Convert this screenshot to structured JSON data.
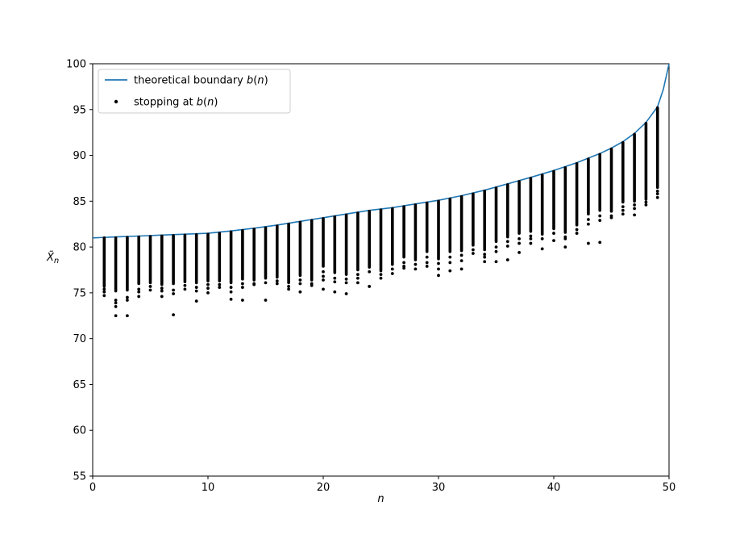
{
  "figure": {
    "background": "#ffffff",
    "kind": "matplotlib-style scatter plot with boundary curve"
  },
  "legend": {
    "border_color": "#cccccc",
    "background": "#ffffff",
    "items": [
      {
        "type": "line",
        "color": "#1f77b4",
        "label": "theoretical boundary b(n)",
        "label_parts": [
          {
            "text": "theoretical boundary ",
            "italic": false
          },
          {
            "text": "b",
            "italic": true
          },
          {
            "text": "(",
            "italic": false
          },
          {
            "text": "n",
            "italic": true
          },
          {
            "text": ")",
            "italic": false
          }
        ]
      },
      {
        "type": "dot",
        "color": "#000000",
        "label": "stopping at b(n)",
        "label_parts": [
          {
            "text": "stopping at ",
            "italic": false
          },
          {
            "text": "b",
            "italic": true
          },
          {
            "text": "(",
            "italic": false
          },
          {
            "text": "n",
            "italic": true
          },
          {
            "text": ")",
            "italic": false
          }
        ]
      }
    ]
  },
  "axes": {
    "x_range": [
      0,
      50
    ],
    "y_range": [
      55,
      100
    ],
    "x_ticks": [
      0,
      10,
      20,
      30,
      40,
      50
    ],
    "y_ticks": [
      55,
      60,
      65,
      70,
      75,
      80,
      85,
      90,
      95,
      100
    ],
    "xlabel": "n",
    "ylabel": "X̃n",
    "xlabel_parts": [
      {
        "text": "n",
        "italic": true
      }
    ],
    "ylabel_parts": [
      {
        "text": "X̃",
        "italic": true
      },
      {
        "text": "n",
        "italic": true,
        "sub": true
      }
    ]
  },
  "chart_data": {
    "type": "scatter",
    "title": "",
    "xlabel": "n",
    "ylabel": "X̃n",
    "xlim": [
      0,
      50
    ],
    "ylim": [
      55,
      100
    ],
    "grid": false,
    "legend_position": "upper left",
    "series": [
      {
        "name": "theoretical boundary b(n)",
        "kind": "line",
        "color": "#1f77b4",
        "x": [
          0,
          2,
          4,
          6,
          8,
          10,
          12,
          14,
          16,
          18,
          20,
          22,
          24,
          26,
          28,
          30,
          32,
          34,
          36,
          38,
          40,
          42,
          44,
          45,
          46,
          47,
          48,
          49,
          49.5,
          50
        ],
        "y": [
          81.0,
          81.1,
          81.2,
          81.3,
          81.4,
          81.5,
          81.75,
          82.05,
          82.4,
          82.8,
          83.2,
          83.6,
          84.0,
          84.3,
          84.7,
          85.1,
          85.6,
          86.2,
          86.9,
          87.6,
          88.35,
          89.2,
          90.2,
          90.8,
          91.5,
          92.4,
          93.6,
          95.3,
          97.2,
          100.0
        ]
      },
      {
        "name": "stopping at b(n)",
        "kind": "scatter-strips",
        "color": "#000000",
        "note": "dense vertical clusters of stopped sample means at each n; top touches b(n), plus sparse low outliers",
        "strips": [
          {
            "n": 1,
            "top": 81.0,
            "bottom": 75.7,
            "outliers": [
              75.4,
              75.1,
              74.7
            ]
          },
          {
            "n": 2,
            "top": 81.0,
            "bottom": 75.2,
            "outliers": [
              74.2,
              73.9,
              73.5,
              72.5
            ]
          },
          {
            "n": 3,
            "top": 81.05,
            "bottom": 75.3,
            "outliers": [
              74.5,
              74.2,
              72.5
            ]
          },
          {
            "n": 4,
            "top": 81.1,
            "bottom": 76.0,
            "outliers": [
              75.4,
              75.1,
              74.6
            ]
          },
          {
            "n": 5,
            "top": 81.15,
            "bottom": 76.1,
            "outliers": [
              75.7,
              75.3
            ]
          },
          {
            "n": 6,
            "top": 81.2,
            "bottom": 75.9,
            "outliers": [
              75.5,
              75.2,
              74.6
            ]
          },
          {
            "n": 7,
            "top": 81.25,
            "bottom": 76.0,
            "outliers": [
              75.3,
              74.9,
              72.6
            ]
          },
          {
            "n": 8,
            "top": 81.3,
            "bottom": 76.2,
            "outliers": [
              75.8,
              75.4
            ]
          },
          {
            "n": 9,
            "top": 81.35,
            "bottom": 76.1,
            "outliers": [
              75.6,
              75.2,
              74.1
            ]
          },
          {
            "n": 10,
            "top": 81.4,
            "bottom": 76.3,
            "outliers": [
              75.9,
              75.5,
              75.0
            ]
          },
          {
            "n": 11,
            "top": 81.5,
            "bottom": 76.3,
            "outliers": [
              75.9,
              75.6
            ]
          },
          {
            "n": 12,
            "top": 81.65,
            "bottom": 76.1,
            "outliers": [
              75.6,
              75.1,
              74.3
            ]
          },
          {
            "n": 13,
            "top": 81.8,
            "bottom": 76.5,
            "outliers": [
              76.0,
              75.6,
              74.2
            ]
          },
          {
            "n": 14,
            "top": 81.95,
            "bottom": 76.4,
            "outliers": [
              76.0,
              75.9
            ]
          },
          {
            "n": 15,
            "top": 82.1,
            "bottom": 76.6,
            "outliers": [
              76.1,
              74.2
            ]
          },
          {
            "n": 16,
            "top": 82.3,
            "bottom": 76.7,
            "outliers": [
              76.3,
              76.0
            ]
          },
          {
            "n": 17,
            "top": 82.5,
            "bottom": 76.1,
            "outliers": [
              75.7,
              75.4
            ]
          },
          {
            "n": 18,
            "top": 82.7,
            "bottom": 76.9,
            "outliers": [
              76.4,
              76.0,
              75.1
            ]
          },
          {
            "n": 19,
            "top": 82.9,
            "bottom": 76.4,
            "outliers": [
              76.0,
              75.8
            ]
          },
          {
            "n": 20,
            "top": 83.1,
            "bottom": 77.9,
            "outliers": [
              77.3,
              76.8,
              76.4,
              75.4
            ]
          },
          {
            "n": 21,
            "top": 83.3,
            "bottom": 77.2,
            "outliers": [
              76.6,
              76.2,
              75.1
            ]
          },
          {
            "n": 22,
            "top": 83.5,
            "bottom": 77.0,
            "outliers": [
              76.5,
              76.1,
              74.9
            ]
          },
          {
            "n": 23,
            "top": 83.7,
            "bottom": 77.5,
            "outliers": [
              77.0,
              76.6,
              76.1
            ]
          },
          {
            "n": 24,
            "top": 83.9,
            "bottom": 77.8,
            "outliers": [
              77.3,
              75.7
            ]
          },
          {
            "n": 25,
            "top": 84.05,
            "bottom": 77.4,
            "outliers": [
              77.0,
              76.6
            ]
          },
          {
            "n": 26,
            "top": 84.2,
            "bottom": 78.1,
            "outliers": [
              77.6,
              77.1
            ]
          },
          {
            "n": 27,
            "top": 84.4,
            "bottom": 78.9,
            "outliers": [
              78.3,
              77.9,
              77.7
            ]
          },
          {
            "n": 28,
            "top": 84.6,
            "bottom": 78.6,
            "outliers": [
              78.1,
              77.6
            ]
          },
          {
            "n": 29,
            "top": 84.8,
            "bottom": 79.5,
            "outliers": [
              78.9,
              78.3,
              77.9
            ]
          },
          {
            "n": 30,
            "top": 85.0,
            "bottom": 78.7,
            "outliers": [
              78.2,
              77.6,
              76.9
            ]
          },
          {
            "n": 31,
            "top": 85.25,
            "bottom": 79.5,
            "outliers": [
              78.9,
              78.3,
              77.4
            ]
          },
          {
            "n": 32,
            "top": 85.5,
            "bottom": 79.6,
            "outliers": [
              79.1,
              78.5,
              77.6
            ]
          },
          {
            "n": 33,
            "top": 85.8,
            "bottom": 80.2,
            "outliers": [
              79.7,
              79.3
            ]
          },
          {
            "n": 34,
            "top": 86.1,
            "bottom": 79.7,
            "outliers": [
              79.2,
              78.9,
              78.4
            ]
          },
          {
            "n": 35,
            "top": 86.45,
            "bottom": 80.6,
            "outliers": [
              80.0,
              79.5,
              78.4
            ]
          },
          {
            "n": 36,
            "top": 86.8,
            "bottom": 81.1,
            "outliers": [
              80.6,
              80.1,
              78.6
            ]
          },
          {
            "n": 37,
            "top": 87.15,
            "bottom": 81.5,
            "outliers": [
              80.9,
              80.4,
              79.4
            ]
          },
          {
            "n": 38,
            "top": 87.5,
            "bottom": 81.7,
            "outliers": [
              81.2,
              80.9,
              80.4
            ]
          },
          {
            "n": 39,
            "top": 87.85,
            "bottom": 81.4,
            "outliers": [
              80.9,
              79.8
            ]
          },
          {
            "n": 40,
            "top": 88.25,
            "bottom": 82.0,
            "outliers": [
              81.5,
              80.7
            ]
          },
          {
            "n": 41,
            "top": 88.65,
            "bottom": 81.6,
            "outliers": [
              81.1,
              80.9,
              80.0
            ]
          },
          {
            "n": 42,
            "top": 89.1,
            "bottom": 82.4,
            "outliers": [
              81.9,
              81.5
            ]
          },
          {
            "n": 43,
            "top": 89.6,
            "bottom": 83.6,
            "outliers": [
              83.0,
              82.5,
              80.4
            ]
          },
          {
            "n": 44,
            "top": 90.1,
            "bottom": 84.0,
            "outliers": [
              83.4,
              82.9,
              80.5
            ]
          },
          {
            "n": 45,
            "top": 90.7,
            "bottom": 83.9,
            "outliers": [
              83.4,
              83.2
            ]
          },
          {
            "n": 46,
            "top": 91.4,
            "bottom": 84.9,
            "outliers": [
              84.4,
              84.0,
              83.6
            ]
          },
          {
            "n": 47,
            "top": 92.3,
            "bottom": 85.0,
            "outliers": [
              84.6,
              84.2,
              83.5
            ]
          },
          {
            "n": 48,
            "top": 93.5,
            "bottom": 85.2,
            "outliers": [
              84.9,
              84.6
            ]
          },
          {
            "n": 49,
            "top": 95.2,
            "bottom": 86.5,
            "outliers": [
              86.1,
              85.8,
              85.4
            ]
          }
        ]
      }
    ]
  }
}
